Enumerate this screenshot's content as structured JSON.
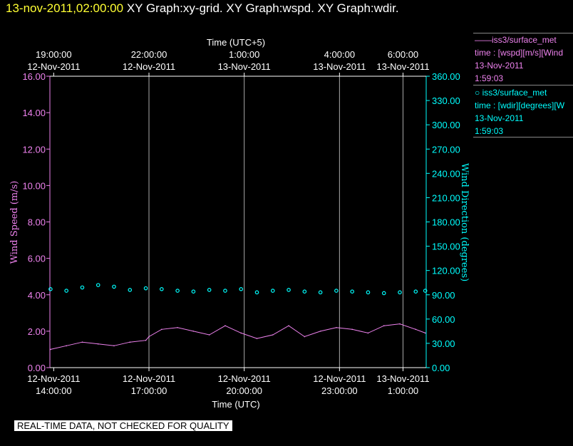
{
  "header": {
    "timestamp": "13-nov-2011,02:00:00",
    "graphs": "XY Graph:xy-grid.  XY Graph:wspd.  XY Graph:wdir."
  },
  "legend": [
    {
      "marker": "——",
      "name": "iss3/surface_met",
      "line1": "time : [wspd][m/s][Wind",
      "date": "13-Nov-2011",
      "time": "1:59:03",
      "color": "#ee82ee"
    },
    {
      "marker": "○",
      "name": "iss3/surface_met",
      "line1": "time : [wdir][degrees][W",
      "date": "13-Nov-2011",
      "time": "1:59:03",
      "color": "#00ffff"
    }
  ],
  "disclaimer": "REAL-TIME DATA, NOT CHECKED FOR QUALITY",
  "chart_data": {
    "type": "line",
    "xlabel": "Time (UTC)",
    "xlabel_top": "Time (UTC+5)",
    "xlim_hours_utc": [
      13.88,
      25.73
    ],
    "ylabel_left": "Wind Speed (m/s)",
    "ylabel_right": "Wind Direction (degrees)",
    "ylim_left": [
      0,
      16
    ],
    "ylim_right": [
      0,
      360
    ],
    "left_ticks": [
      "0.00",
      "2.00",
      "4.00",
      "6.00",
      "8.00",
      "10.00",
      "12.00",
      "14.00",
      "16.00"
    ],
    "right_ticks": [
      "0.00",
      "30.00",
      "60.00",
      "90.00",
      "120.00",
      "150.00",
      "180.00",
      "210.00",
      "240.00",
      "270.00",
      "300.00",
      "330.00",
      "360.00"
    ],
    "bottom_ticks": [
      {
        "hour": 14,
        "date": "12-Nov-2011",
        "time": "14:00:00"
      },
      {
        "hour": 17,
        "date": "12-Nov-2011",
        "time": "17:00:00"
      },
      {
        "hour": 20,
        "date": "12-Nov-2011",
        "time": "20:00:00"
      },
      {
        "hour": 23,
        "date": "12-Nov-2011",
        "time": "23:00:00"
      },
      {
        "hour": 25,
        "date": "13-Nov-2011",
        "time": "1:00:00"
      }
    ],
    "top_ticks": [
      {
        "hour": 14,
        "time": "19:00:00",
        "date": "12-Nov-2011"
      },
      {
        "hour": 17,
        "time": "22:00:00",
        "date": "12-Nov-2011"
      },
      {
        "hour": 20,
        "time": "1:00:00",
        "date": "13-Nov-2011"
      },
      {
        "hour": 23,
        "time": "4:00:00",
        "date": "13-Nov-2011"
      },
      {
        "hour": 25,
        "time": "6:00:00",
        "date": "13-Nov-2011"
      }
    ],
    "grid_hours": [
      17,
      20,
      23,
      25
    ],
    "series": [
      {
        "name": "iss3/surface_met time : [wspd][m/s]",
        "axis": "left",
        "style": "line",
        "color": "#ee82ee",
        "x_hours": [
          13.9,
          14.4,
          14.9,
          15.4,
          15.9,
          16.4,
          16.9,
          17.0,
          17.4,
          17.9,
          18.4,
          18.9,
          19.4,
          19.9,
          20.4,
          20.9,
          21.4,
          21.9,
          22.4,
          22.9,
          23.4,
          23.9,
          24.4,
          24.9,
          25.4,
          25.7
        ],
        "values": [
          1.0,
          1.2,
          1.4,
          1.3,
          1.2,
          1.4,
          1.5,
          1.7,
          2.1,
          2.2,
          2.0,
          1.8,
          2.3,
          1.9,
          1.6,
          1.8,
          2.3,
          1.7,
          2.0,
          2.2,
          2.1,
          1.9,
          2.3,
          2.4,
          2.1,
          1.9
        ]
      },
      {
        "name": "iss3/surface_met time : [wdir][degrees]",
        "axis": "right",
        "style": "scatter",
        "marker": "circle",
        "color": "#00ffff",
        "x_hours": [
          13.9,
          14.4,
          14.9,
          15.4,
          15.9,
          16.4,
          16.9,
          17.4,
          17.9,
          18.4,
          18.9,
          19.4,
          19.9,
          20.4,
          20.9,
          21.4,
          21.9,
          22.4,
          22.9,
          23.4,
          23.9,
          24.4,
          24.9,
          25.4,
          25.7
        ],
        "values": [
          97,
          95,
          99,
          102,
          100,
          96,
          98,
          97,
          95,
          94,
          96,
          95,
          97,
          93,
          95,
          96,
          94,
          93,
          95,
          94,
          93,
          92,
          93,
          94,
          95
        ]
      }
    ]
  }
}
